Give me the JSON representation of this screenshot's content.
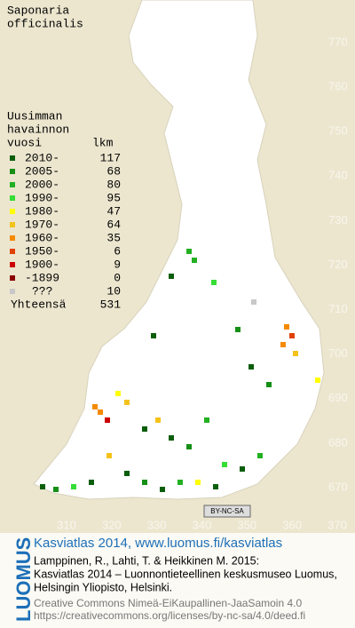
{
  "map": {
    "title": [
      "Saponaria",
      "officinalis"
    ],
    "background": "#ece6cf",
    "land": "#ffffff",
    "legend": {
      "heading": [
        "Uusimman",
        "havainnon",
        "vuosi"
      ],
      "count_heading": "lkm",
      "rows": [
        {
          "label": "2010-",
          "count": 117,
          "color": "#0b5e0b"
        },
        {
          "label": "2005-",
          "count": 68,
          "color": "#168f16"
        },
        {
          "label": "2000-",
          "count": 80,
          "color": "#22b022"
        },
        {
          "label": "1990-",
          "count": 95,
          "color": "#35dd35"
        },
        {
          "label": "1980-",
          "count": 47,
          "color": "#ffff00"
        },
        {
          "label": "1970-",
          "count": 64,
          "color": "#f4c21a"
        },
        {
          "label": "1960-",
          "count": 35,
          "color": "#f58a00"
        },
        {
          "label": "1950-",
          "count": 6,
          "color": "#e04000"
        },
        {
          "label": "1900-",
          "count": 9,
          "color": "#cc0000"
        },
        {
          "label": "-1899",
          "count": 0,
          "color": "#8b0000"
        },
        {
          "label": "???",
          "count": 10,
          "color": "#c8c8c8"
        }
      ],
      "total_label": "Yhteensä",
      "total": 531
    },
    "grid_y": [
      770,
      760,
      750,
      740,
      730,
      720,
      710,
      700,
      690,
      680,
      670
    ],
    "grid_x": [
      310,
      320,
      330,
      340,
      350,
      360,
      370
    ],
    "license_badge": "BY-NC-SA"
  },
  "footer": {
    "brand": "LUOMUS",
    "headline": "Kasviatlas 2014, www.luomus.fi/kasviatlas",
    "citation": [
      "Lamppinen, R., Lahti, T. & Heikkinen M. 2015:",
      "Kasviatlas 2014 – Luonnontieteellinen keskusmuseo Luomus,",
      "Helsingin Yliopisto, Helsinki."
    ],
    "license": [
      "Creative Commons Nimeä-EiKaupallinen-JaaSamoin 4.0",
      "https://creativecommons.org/licenses/by-nc-sa/4.0/deed.fi"
    ]
  }
}
